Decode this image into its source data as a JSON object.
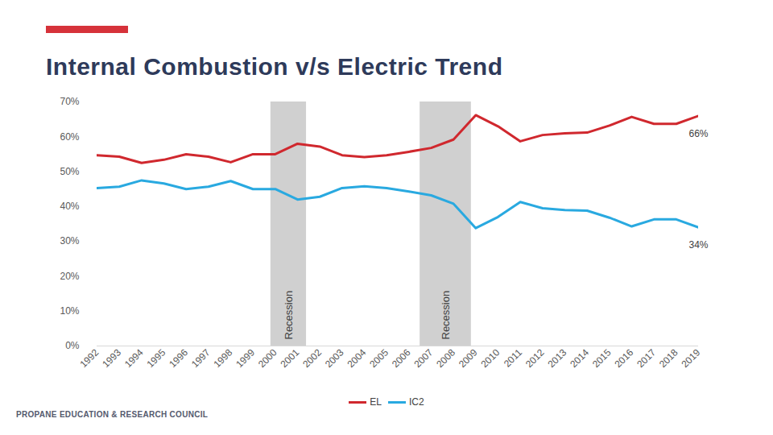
{
  "chart_data": {
    "type": "line",
    "title": "Internal Combustion v/s Electric Trend",
    "x": [
      1992,
      1993,
      1994,
      1995,
      1996,
      1997,
      1998,
      1999,
      2000,
      2001,
      2002,
      2003,
      2004,
      2005,
      2006,
      2007,
      2008,
      2009,
      2010,
      2011,
      2012,
      2013,
      2014,
      2015,
      2016,
      2017,
      2018,
      2019
    ],
    "series": [
      {
        "name": "EL",
        "color": "#d0282e",
        "values": [
          54.7,
          54.3,
          52.5,
          53.4,
          55.0,
          54.3,
          52.7,
          55.0,
          55.0,
          58.0,
          57.2,
          54.7,
          54.2,
          54.7,
          55.7,
          56.8,
          59.2,
          66.2,
          63.0,
          58.7,
          60.5,
          61.0,
          61.2,
          63.2,
          65.7,
          63.7,
          63.7,
          66.0
        ]
      },
      {
        "name": "IC2",
        "color": "#29a9e0",
        "values": [
          45.3,
          45.7,
          47.5,
          46.6,
          45.0,
          45.7,
          47.3,
          45.0,
          45.0,
          42.0,
          42.8,
          45.3,
          45.8,
          45.3,
          44.3,
          43.2,
          40.8,
          33.8,
          37.0,
          41.3,
          39.5,
          39.0,
          38.8,
          36.8,
          34.3,
          36.3,
          36.3,
          34.0
        ]
      }
    ],
    "xlim": [
      1992,
      2019
    ],
    "xticks": [
      1992,
      1993,
      1994,
      1995,
      1996,
      1997,
      1998,
      1999,
      2000,
      2001,
      2002,
      2003,
      2004,
      2005,
      2006,
      2007,
      2008,
      2009,
      2010,
      2011,
      2012,
      2013,
      2014,
      2015,
      2016,
      2017,
      2018,
      2019
    ],
    "ylim": [
      0,
      70
    ],
    "yticks": [
      {
        "value": 0,
        "label": "0%"
      },
      {
        "value": 10,
        "label": "10%"
      },
      {
        "value": 20,
        "label": "20%"
      },
      {
        "value": 30,
        "label": "30%"
      },
      {
        "value": 40,
        "label": "40%"
      },
      {
        "value": 50,
        "label": "50%"
      },
      {
        "value": 60,
        "label": "60%"
      },
      {
        "value": 70,
        "label": "70%"
      }
    ],
    "grid": false,
    "legend": "bottom",
    "recessions": [
      {
        "label": "Recession",
        "start": 1999.8,
        "end": 2001.4
      },
      {
        "label": "Recession",
        "start": 2006.5,
        "end": 2008.8
      }
    ],
    "annotations": [
      {
        "text": "66%",
        "x": 2019,
        "y": 66
      },
      {
        "text": "34%",
        "x": 2019,
        "y": 34
      }
    ],
    "footer": "PROPANE EDUCATION & RESEARCH COUNCIL"
  }
}
